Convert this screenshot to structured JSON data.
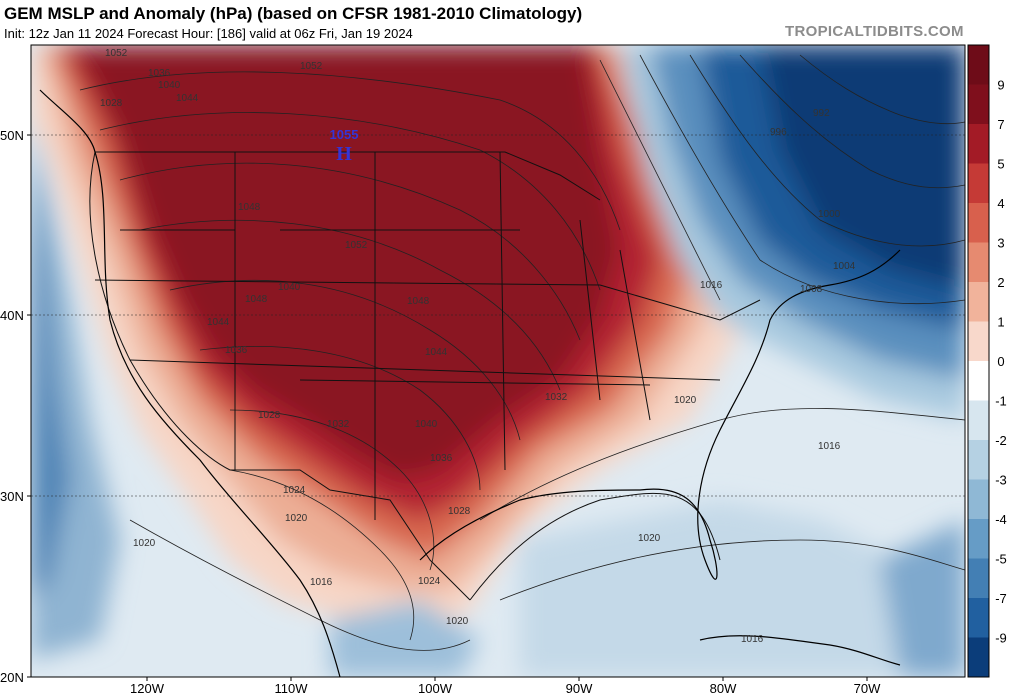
{
  "header": {
    "title": "GEM MSLP and Anomaly (hPa) (based on CFSR 1981-2010 Climatology)",
    "subtitle": "Init: 12z Jan 11 2024   Forecast Hour: [186]   valid at 06z Fri, Jan 19 2024",
    "brand": "TROPICALTIDBITS.COM"
  },
  "map": {
    "lat_labels": [
      "50N",
      "40N",
      "30N",
      "20N"
    ],
    "lon_labels": [
      "120W",
      "110W",
      "100W",
      "90W",
      "80W",
      "70W"
    ],
    "high_center": {
      "label": "H",
      "value": "1055"
    },
    "contour_labels": [
      "1052",
      "1036",
      "1040",
      "1044",
      "1028",
      "1052",
      "1048",
      "1052",
      "1048",
      "1040",
      "1044",
      "1036",
      "1048",
      "1044",
      "1040",
      "1032",
      "1028",
      "1036",
      "1032",
      "1024",
      "1020",
      "1020",
      "1016",
      "1024",
      "1028",
      "1020",
      "1016",
      "1020",
      "1016",
      "1020",
      "1016",
      "996",
      "992",
      "1000",
      "1004",
      "1008"
    ]
  },
  "colorbar": {
    "labels": [
      "9",
      "7",
      "5",
      "4",
      "3",
      "2",
      "1",
      "0",
      "-1",
      "-2",
      "-3",
      "-4",
      "-5",
      "-7",
      "-9"
    ],
    "colors": [
      "#7f0f1c",
      "#a31b26",
      "#c53a36",
      "#d8604d",
      "#e68a70",
      "#f1b39b",
      "#f8d8cb",
      "#ffffff",
      "#d7e6ef",
      "#b5d1e3",
      "#8fb8d5",
      "#669cc6",
      "#437fb4",
      "#2160a0",
      "#0b3d7a"
    ]
  }
}
